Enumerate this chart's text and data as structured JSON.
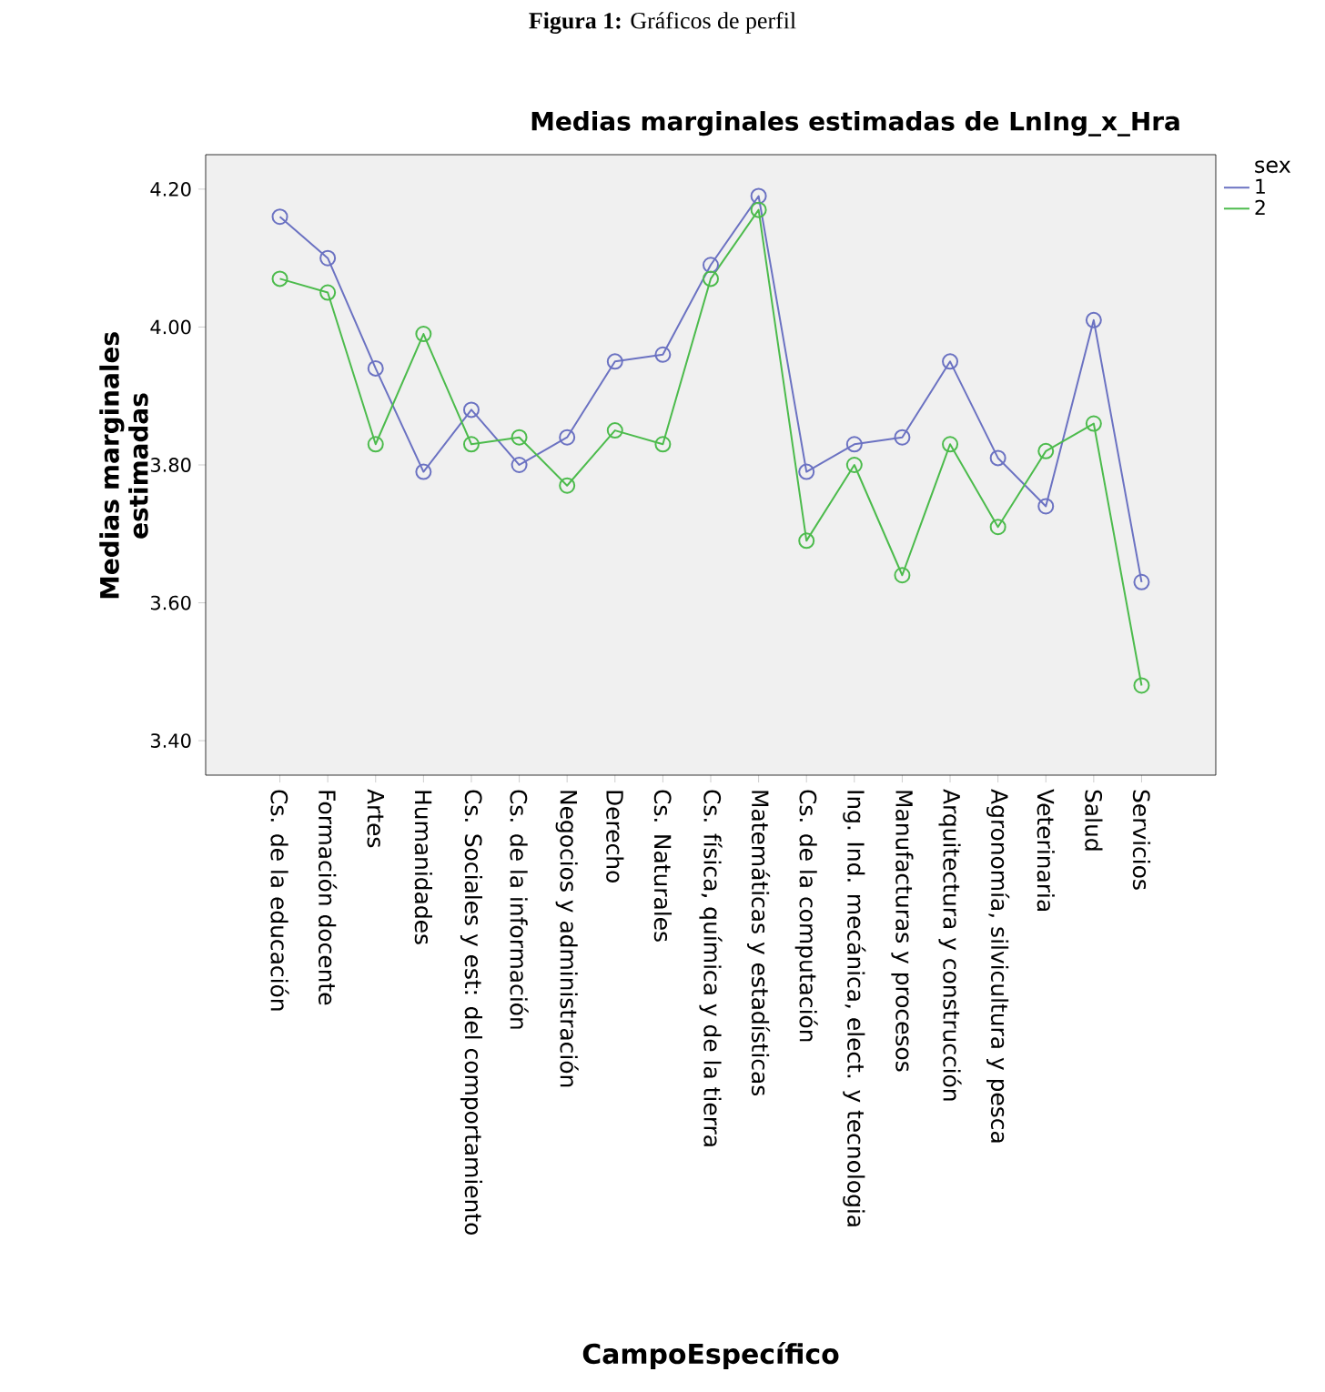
{
  "chart_data": {
    "type": "line",
    "title": "**Figura 1:** Gráficos de perfil",
    "subtitle": "Medias marginales estimadas de LnIng_x_Hra",
    "xlabel": "CampoEspecífico",
    "ylabel": "Medias marginales estimadas",
    "legend_title": "sex",
    "categories": [
      "Cs. de la educación",
      "Formación docente",
      "Artes",
      "Humanidades",
      "Cs. Sociales y est: del comportamiento",
      "Cs. de la información",
      "Negocios y administración",
      "Derecho",
      "Cs. Naturales",
      "Cs. física, química y de la tierra",
      "Matemáticas y estadísticas",
      "Cs. de la computación",
      "Ing. Ind. mecánica, elect. y tecnologia",
      "Manufacturas y procesos",
      "Arquitectura y construcción",
      "Agronomía, silvicultura y pesca",
      "Veterinaria",
      "Salud",
      "Servicios"
    ],
    "series": [
      {
        "name": "1",
        "color": "#6b72c2",
        "values": [
          4.16,
          4.1,
          3.94,
          3.79,
          3.88,
          3.8,
          3.84,
          3.95,
          3.96,
          4.09,
          4.19,
          3.79,
          3.83,
          3.84,
          3.95,
          3.81,
          3.74,
          4.01,
          3.63
        ]
      },
      {
        "name": "2",
        "color": "#4cbb4c",
        "values": [
          4.07,
          4.05,
          3.83,
          3.99,
          3.83,
          3.84,
          3.77,
          3.85,
          3.83,
          4.07,
          4.17,
          3.69,
          3.8,
          3.64,
          3.83,
          3.71,
          3.82,
          3.86,
          3.48
        ]
      }
    ],
    "ylim": [
      3.35,
      4.25
    ],
    "yticks": [
      {
        "value": 3.4,
        "label": "3.40"
      },
      {
        "value": 3.6,
        "label": "3.60"
      },
      {
        "value": 3.8,
        "label": "3.80"
      },
      {
        "value": 4.0,
        "label": "4.00"
      },
      {
        "value": 4.2,
        "label": "4.20"
      }
    ],
    "grid": false,
    "legend": "top right",
    "marker": "circle",
    "line_style": "solid"
  }
}
